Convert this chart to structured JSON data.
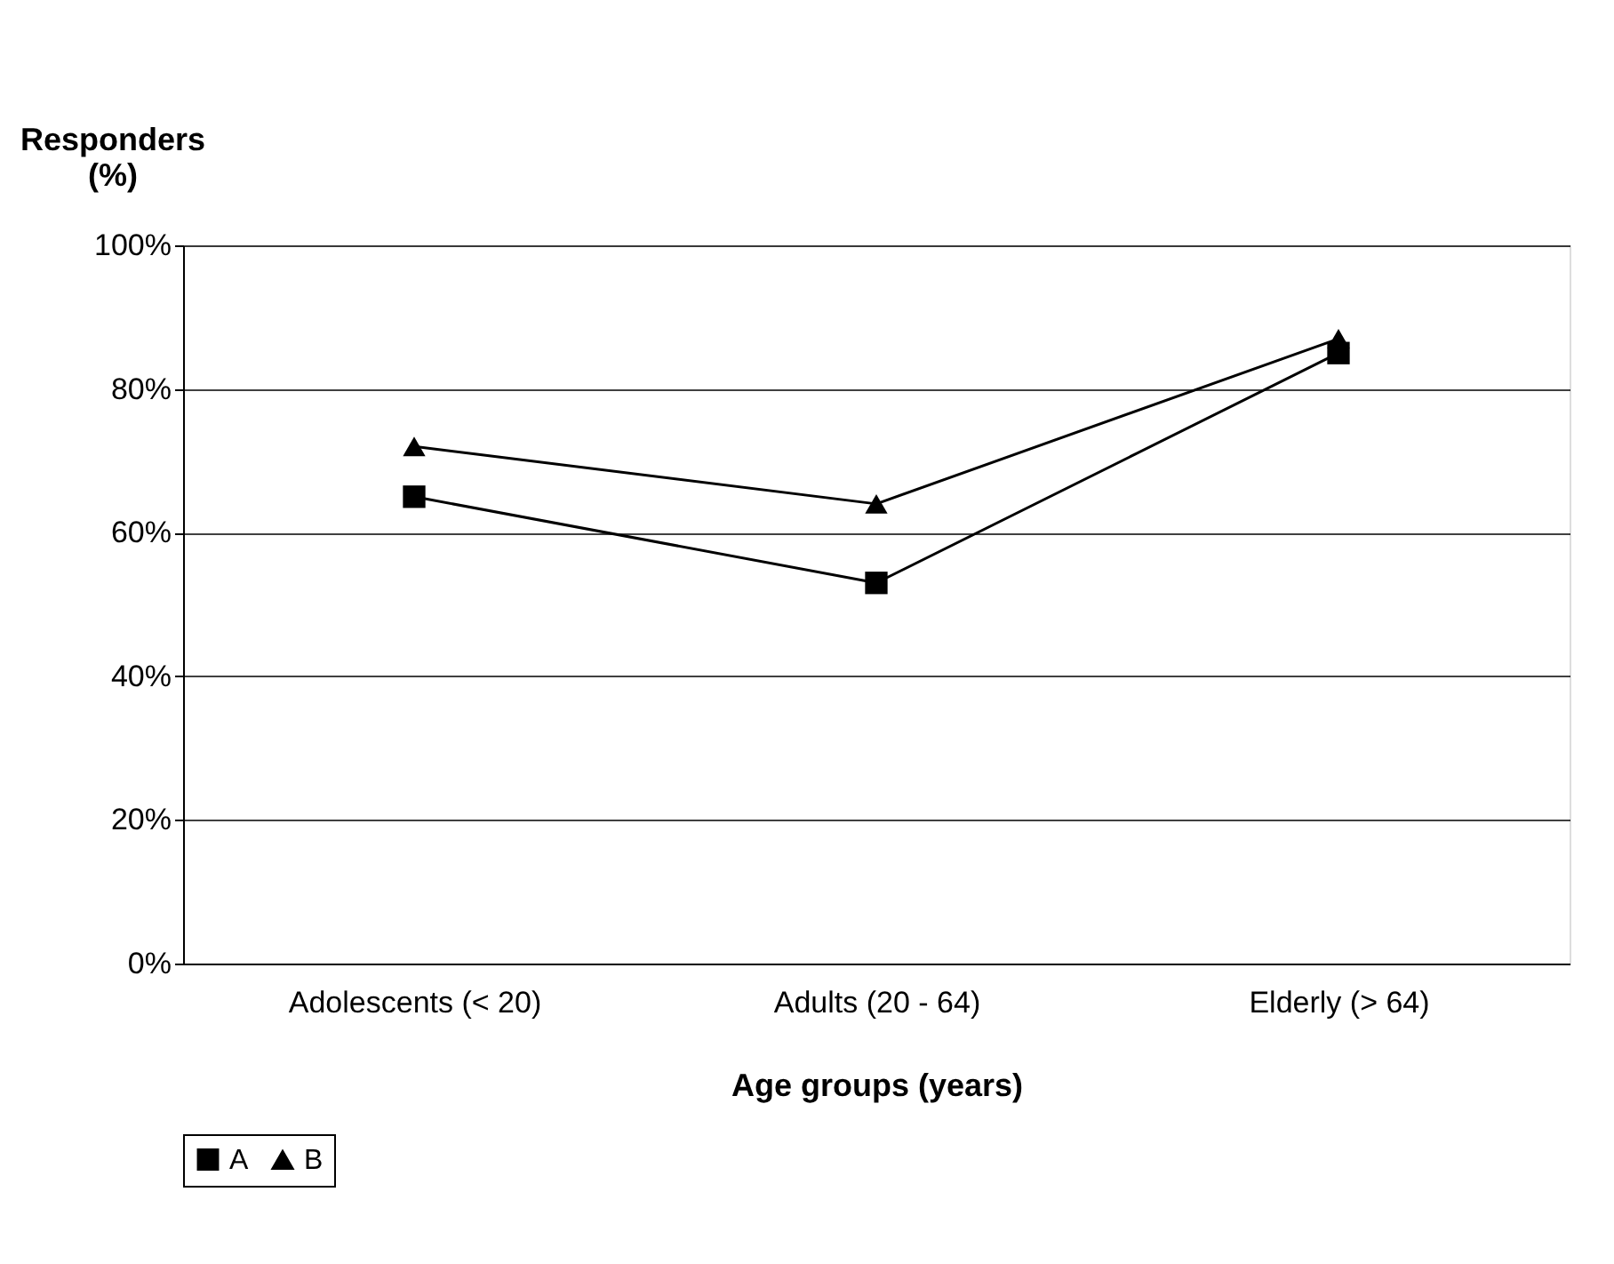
{
  "chart_data": {
    "type": "line",
    "xlabel": "Age groups (years)",
    "ylabel": "Responders (%)",
    "categories": [
      "Adolescents (< 20)",
      "Adults (20 - 64)",
      "Elderly (> 64)"
    ],
    "series": [
      {
        "name": "A",
        "color": "#000000",
        "marker": "square",
        "values": [
          65,
          53,
          85
        ]
      },
      {
        "name": "B",
        "color": "#000000",
        "marker": "triangle",
        "values": [
          72,
          64,
          87
        ]
      }
    ],
    "ylim": [
      0,
      100
    ],
    "yticks": [
      {
        "value": 0,
        "label": "0%"
      },
      {
        "value": 20,
        "label": "20%"
      },
      {
        "value": 40,
        "label": "40%"
      },
      {
        "value": 60,
        "label": "60%"
      },
      {
        "value": 80,
        "label": "80%"
      },
      {
        "value": 100,
        "label": "100%"
      }
    ],
    "grid": "y",
    "legend": "bottom",
    "line_style": "solid"
  }
}
